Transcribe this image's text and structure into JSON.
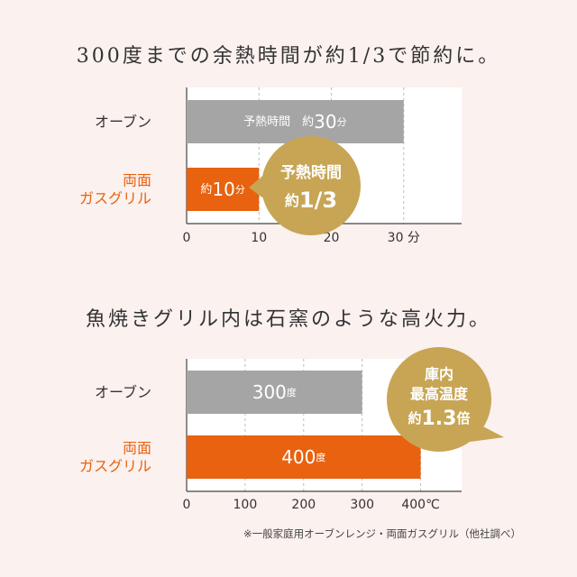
{
  "heading1": "300度までの余熱時間が約1/3で節約に。",
  "heading2": "魚焼きグリル内は石窯のような高火力。",
  "footnote": "※一般家庭用オーブンレンジ・両面ガスグリル（他社調べ）",
  "colors": {
    "oven": "#a5a5a5",
    "grill": "#e8620f",
    "grill_label": "#e8620f",
    "bubble": "#c7a554",
    "background": "#fbf1ef",
    "plot_bg": "#ffffff"
  },
  "chart_data": [
    {
      "type": "bar",
      "orientation": "horizontal",
      "categories": [
        "オーブン",
        "両面\nガスグリル"
      ],
      "values": [
        30,
        10
      ],
      "bar_labels": [
        {
          "prefix": "予熱時間　約",
          "value": "30",
          "unit": "分"
        },
        {
          "prefix": "約",
          "value": "10",
          "unit": "分"
        }
      ],
      "xlim": [
        0,
        38
      ],
      "xticks": [
        0,
        10,
        20,
        30
      ],
      "tick_labels": [
        "0",
        "10",
        "20",
        "30 分"
      ],
      "grid": "vertical dashed",
      "callout": {
        "lines": [
          "予熱時間",
          "約1/3"
        ]
      }
    },
    {
      "type": "bar",
      "orientation": "horizontal",
      "categories": [
        "オーブン",
        "両面\nガスグリル"
      ],
      "values": [
        300,
        400
      ],
      "bar_labels": [
        {
          "prefix": "",
          "value": "300",
          "unit": "度"
        },
        {
          "prefix": "",
          "value": "400",
          "unit": "度"
        }
      ],
      "xlim": [
        0,
        470
      ],
      "xticks": [
        0,
        100,
        200,
        300,
        400
      ],
      "tick_labels": [
        "0",
        "100",
        "200",
        "300",
        "400℃"
      ],
      "grid": "vertical dashed",
      "callout": {
        "lines": [
          "庫内",
          "最高温度",
          "約1.3倍"
        ]
      }
    }
  ]
}
